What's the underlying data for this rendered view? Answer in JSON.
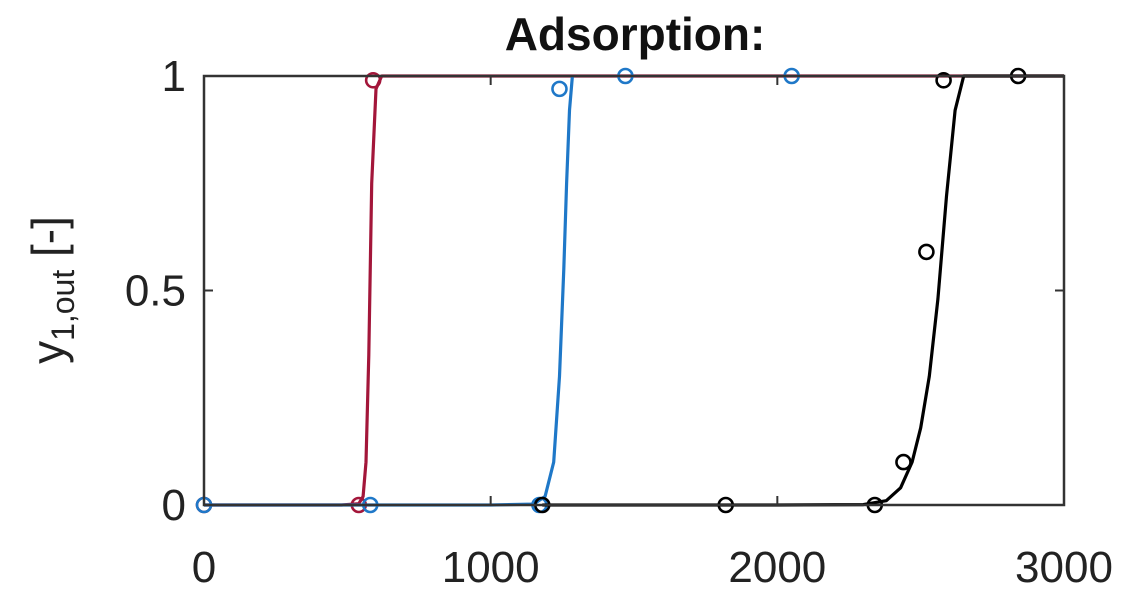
{
  "chart_data": {
    "type": "line",
    "title": "Adsorption:",
    "xlabel": "",
    "ylabel": {
      "main": "y",
      "subscript": "1,out",
      "unit": "[-]"
    },
    "xlim": [
      0,
      3000
    ],
    "ylim": [
      0,
      1
    ],
    "xticks": [
      0,
      1000,
      2000,
      3000
    ],
    "xtick_labels": [
      "0",
      "1000",
      "2000",
      "3000"
    ],
    "yticks": [
      0,
      0.5,
      1
    ],
    "ytick_labels": [
      "0",
      "0.5",
      "1"
    ],
    "grid": false,
    "series": [
      {
        "color": "#a3163a",
        "line": {
          "x": [
            0,
            480,
            540,
            555,
            565,
            575,
            585,
            600,
            620,
            700,
            1000,
            1500,
            2000,
            2500,
            3000
          ],
          "y": [
            0,
            0,
            0.003,
            0.02,
            0.1,
            0.35,
            0.75,
            0.97,
            1,
            1,
            1,
            1,
            1,
            1,
            1
          ]
        },
        "markers": {
          "x": [
            0,
            540,
            590
          ],
          "y": [
            0,
            0,
            0.99
          ]
        }
      },
      {
        "color": "#1f78c8",
        "line": {
          "x": [
            0,
            600,
            1000,
            1150,
            1190,
            1220,
            1240,
            1255,
            1265,
            1275,
            1285
          ],
          "y": [
            0,
            0,
            0,
            0.002,
            0.02,
            0.1,
            0.3,
            0.55,
            0.75,
            0.92,
            1
          ]
        },
        "markers": {
          "x": [
            0,
            580,
            1170,
            1240,
            1470,
            2050
          ],
          "y": [
            0,
            0,
            0,
            0.97,
            1,
            1
          ]
        }
      },
      {
        "color": "#000000",
        "line": {
          "x": [
            1180,
            1500,
            2000,
            2300,
            2380,
            2430,
            2470,
            2500,
            2530,
            2560,
            2590,
            2620,
            2650,
            2700,
            3000
          ],
          "y": [
            0,
            0,
            0,
            0.001,
            0.01,
            0.04,
            0.1,
            0.18,
            0.3,
            0.48,
            0.72,
            0.92,
            1,
            1,
            1
          ]
        },
        "markers": {
          "x": [
            1180,
            1820,
            2340,
            2440,
            2520,
            2580,
            2840
          ],
          "y": [
            0,
            0,
            0,
            0.1,
            0.59,
            0.99,
            1
          ]
        }
      }
    ]
  }
}
